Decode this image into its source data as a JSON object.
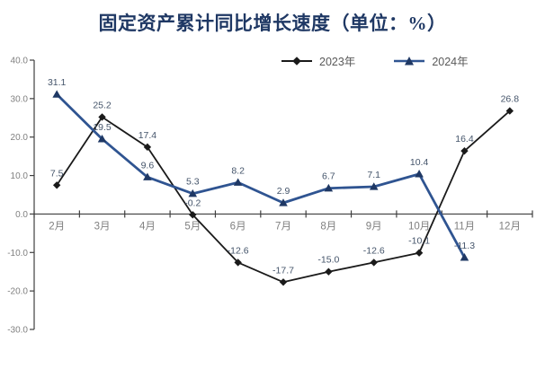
{
  "chart_data": {
    "type": "line",
    "title": "固定资产累计同比增长速度（单位：%）",
    "categories": [
      "2月",
      "3月",
      "4月",
      "5月",
      "6月",
      "7月",
      "8月",
      "9月",
      "10月",
      "11月",
      "12月"
    ],
    "series": [
      {
        "name": "2023年",
        "marker": "diamond",
        "color": "#1a1a1a",
        "marker_color": "#1a1a1a",
        "values": [
          7.5,
          25.2,
          17.4,
          -0.2,
          -12.6,
          -17.7,
          -15.0,
          -12.6,
          -10.1,
          16.4,
          26.8
        ]
      },
      {
        "name": "2024年",
        "marker": "triangle",
        "color": "#2F5491",
        "marker_color": "#1F3864",
        "values": [
          31.1,
          19.5,
          9.6,
          5.3,
          8.2,
          2.9,
          6.7,
          7.1,
          10.4,
          -11.3,
          null
        ]
      }
    ],
    "ylim": [
      -30.0,
      40.0
    ],
    "ytick_step": 10,
    "ytick_labels": [
      "40.0",
      "30.0",
      "20.0",
      "10.0",
      "0.0",
      "-10.0",
      "-20.0",
      "-30.0"
    ],
    "grid": false,
    "legend_position": "top-right",
    "data_labels": "above",
    "colors": {
      "title": "#1F3864",
      "data_label": "#44546A",
      "axis_text": "#7F7F7F",
      "axis_line": "#3F3F3F",
      "legend_text": "#595959",
      "background": "#FFFFFF"
    }
  }
}
